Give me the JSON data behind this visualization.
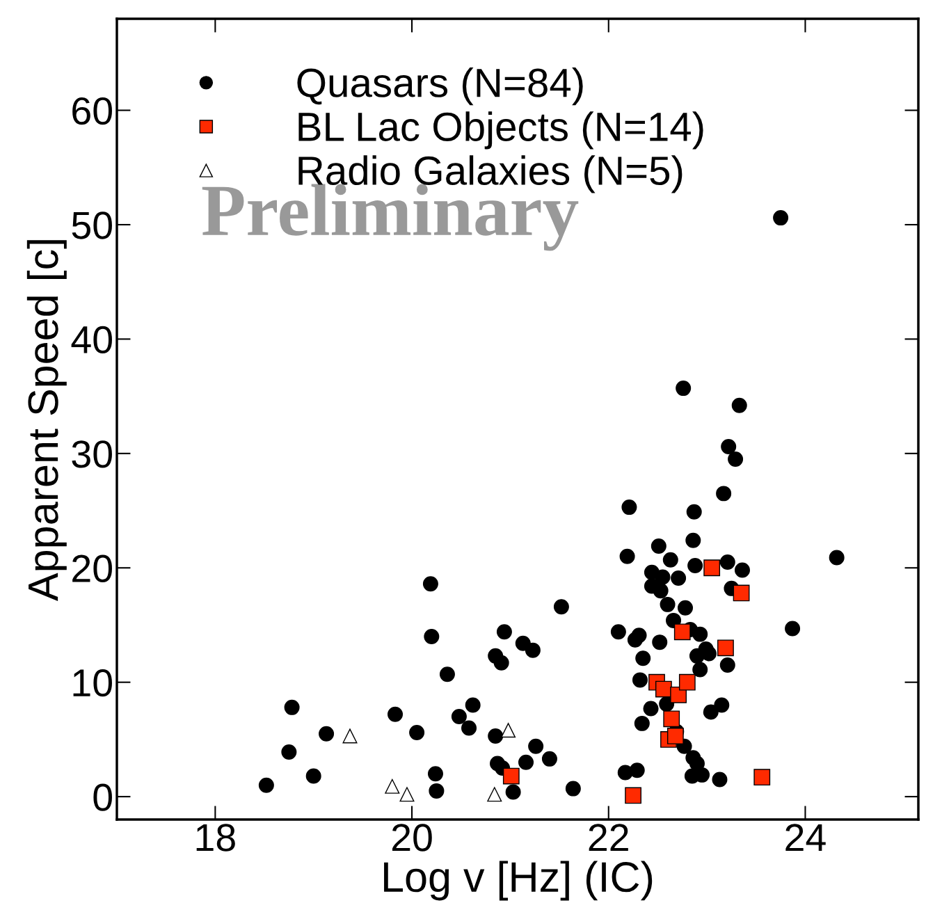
{
  "chart_data": {
    "type": "scatter",
    "xlabel": "Log v [Hz] (IC)",
    "ylabel": "Apparent Speed [c]",
    "annotations": [
      "Preliminary"
    ],
    "xlim": [
      17,
      25.15
    ],
    "ylim": [
      -2,
      68
    ],
    "xticks": [
      18,
      20,
      22,
      24
    ],
    "yticks": [
      0,
      10,
      20,
      30,
      40,
      50,
      60
    ],
    "grid": false,
    "legend": "top left",
    "series": [
      {
        "name": "Quasars (N=84)",
        "color": "#000000",
        "marker": "circle",
        "x": [
          18.52,
          18.75,
          18.78,
          19.0,
          19.13,
          19.83,
          20.05,
          20.19,
          20.2,
          20.24,
          20.25,
          20.36,
          20.48,
          20.58,
          20.62,
          20.85,
          20.85,
          20.87,
          20.91,
          20.92,
          20.94,
          21.03,
          21.13,
          21.16,
          21.23,
          21.26,
          21.4,
          21.52,
          21.64,
          22.1,
          22.17,
          22.19,
          22.21,
          22.27,
          22.29,
          22.31,
          22.32,
          22.35,
          22.34,
          22.43,
          22.44,
          22.44,
          22.51,
          22.52,
          22.53,
          22.55,
          22.59,
          22.6,
          22.63,
          22.66,
          22.71,
          22.69,
          22.76,
          22.77,
          22.78,
          22.83,
          22.85,
          22.86,
          22.86,
          22.87,
          22.88,
          22.9,
          22.93,
          22.9,
          22.93,
          22.95,
          22.99,
          23.02,
          23.04,
          23.15,
          23.13,
          23.17,
          23.21,
          23.21,
          23.22,
          23.25,
          23.29,
          23.33,
          23.36,
          23.75,
          23.87,
          24.32
        ],
        "values": [
          1.0,
          3.9,
          7.8,
          1.8,
          5.5,
          7.2,
          5.6,
          18.6,
          14.0,
          2.0,
          0.5,
          10.7,
          7.0,
          6.0,
          8.0,
          5.3,
          12.3,
          2.9,
          11.7,
          2.5,
          14.4,
          0.4,
          13.4,
          3.0,
          12.8,
          4.4,
          3.3,
          16.6,
          0.7,
          14.4,
          2.1,
          21.0,
          25.3,
          13.7,
          2.3,
          14.1,
          10.2,
          12.1,
          6.4,
          7.7,
          19.6,
          18.4,
          21.9,
          13.5,
          18.0,
          19.2,
          8.1,
          16.8,
          20.7,
          15.4,
          19.1,
          5.7,
          35.7,
          4.4,
          16.5,
          14.6,
          1.8,
          22.4,
          3.4,
          24.9,
          20.2,
          2.9,
          14.2,
          12.3,
          11.1,
          1.9,
          12.9,
          12.5,
          7.4,
          8.0,
          1.5,
          26.5,
          20.5,
          11.5,
          30.6,
          18.2,
          29.5,
          34.2,
          19.8,
          50.6,
          14.7,
          20.9
        ]
      },
      {
        "name": "BL Lac Objects (N=14)",
        "color": "#ff2a00",
        "marker": "square",
        "x": [
          21.01,
          22.25,
          22.49,
          22.56,
          22.61,
          22.64,
          22.68,
          22.71,
          22.75,
          22.8,
          23.05,
          23.19,
          23.35,
          23.56
        ],
        "values": [
          1.8,
          0.1,
          10.0,
          9.4,
          5.0,
          6.8,
          5.3,
          8.9,
          14.4,
          10.0,
          20.0,
          13.0,
          17.8,
          1.7
        ]
      },
      {
        "name": "Radio Galaxies (N=5)",
        "color": "#ffffff",
        "marker": "triangle",
        "x": [
          19.37,
          19.8,
          19.95,
          20.84,
          20.98
        ],
        "values": [
          5.3,
          0.9,
          0.2,
          0.2,
          5.8
        ]
      }
    ]
  }
}
